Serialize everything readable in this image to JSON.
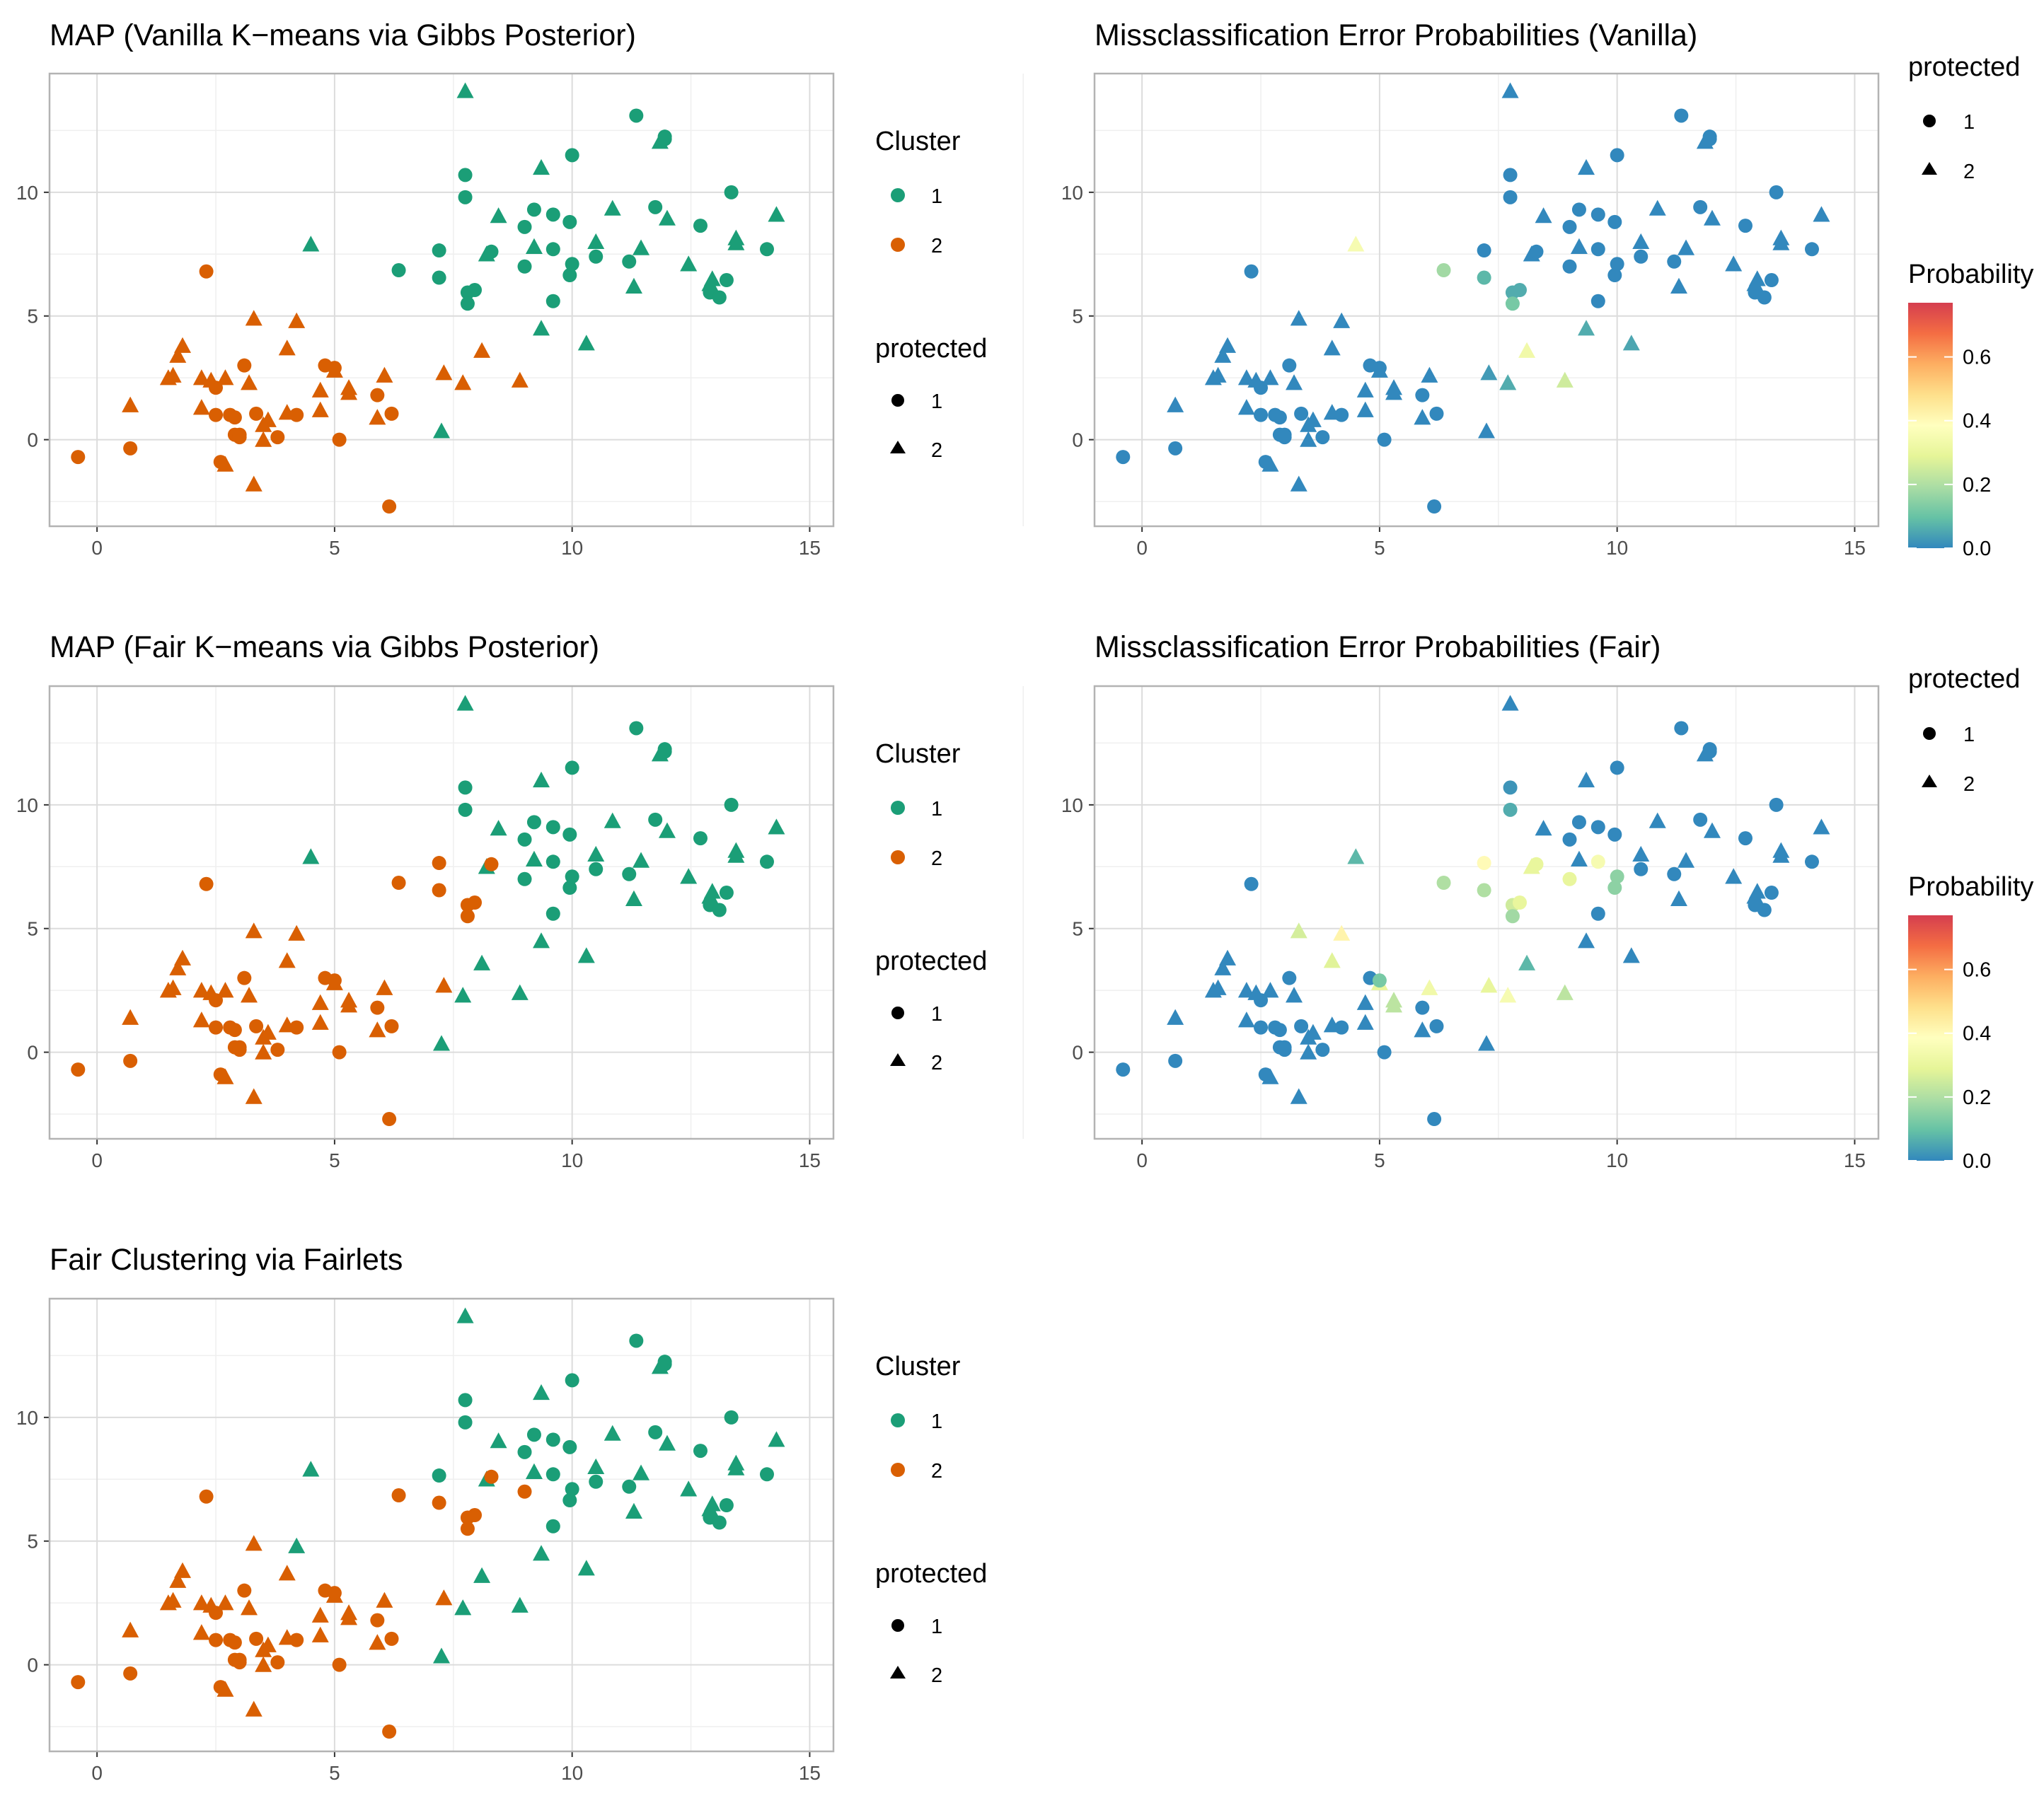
{
  "page": {
    "background": "#ffffff"
  },
  "colors": {
    "cluster": {
      "1": "#1b9e77",
      "2": "#d95f02"
    },
    "grid_major": "#dcdcdc",
    "grid_minor": "#efefef",
    "panel_border": "#b3b3b3",
    "axis_text": "#4d4d4d",
    "shape_key": "#000000",
    "probability_scale": [
      "#3288bd",
      "#66c2a5",
      "#abdda4",
      "#e6f598",
      "#ffffbf",
      "#fee08b",
      "#fdae61",
      "#f46d43",
      "#d53e4f"
    ]
  },
  "legends": {
    "cluster": {
      "title": "Cluster",
      "entries": [
        {
          "label": "1",
          "cluster": 1
        },
        {
          "label": "2",
          "cluster": 2
        }
      ]
    },
    "protected": {
      "title": "protected",
      "entries": [
        {
          "label": "1",
          "shape": "circle"
        },
        {
          "label": "2",
          "shape": "triangle"
        }
      ]
    },
    "probability": {
      "title": "Probability",
      "range": [
        0,
        0.77
      ],
      "ticks": [
        "0.0",
        "0.2",
        "0.4",
        "0.6"
      ]
    }
  },
  "axes": {
    "xlim": [
      -1,
      15.5
    ],
    "ylim": [
      -3.5,
      14.8
    ],
    "x_ticks": [
      "0",
      "5",
      "10",
      "15"
    ],
    "y_ticks": [
      "0",
      "5",
      "10"
    ]
  },
  "points": {
    "fields": [
      "x",
      "y",
      "protected"
    ],
    "values": [
      [
        -0.4,
        -0.7,
        1
      ],
      [
        0.7,
        -0.35,
        1
      ],
      [
        0.7,
        1.4,
        2
      ],
      [
        1.5,
        2.5,
        2
      ],
      [
        1.6,
        2.6,
        2
      ],
      [
        1.7,
        3.4,
        2
      ],
      [
        1.8,
        3.8,
        2
      ],
      [
        2.2,
        1.3,
        2
      ],
      [
        2.2,
        2.5,
        2
      ],
      [
        2.3,
        6.8,
        1
      ],
      [
        2.4,
        2.4,
        2
      ],
      [
        2.5,
        2.1,
        1
      ],
      [
        2.5,
        1.0,
        1
      ],
      [
        2.6,
        -0.9,
        1
      ],
      [
        2.7,
        -1.0,
        2
      ],
      [
        2.7,
        2.5,
        2
      ],
      [
        2.8,
        1.0,
        1
      ],
      [
        2.9,
        0.9,
        1
      ],
      [
        2.9,
        0.2,
        1
      ],
      [
        3.0,
        0.2,
        1
      ],
      [
        3.0,
        0.1,
        1
      ],
      [
        3.1,
        3.0,
        1
      ],
      [
        3.2,
        2.3,
        2
      ],
      [
        3.3,
        4.9,
        2
      ],
      [
        3.3,
        -1.8,
        2
      ],
      [
        3.35,
        1.05,
        1
      ],
      [
        3.5,
        0.0,
        2
      ],
      [
        3.5,
        0.6,
        2
      ],
      [
        3.6,
        0.8,
        2
      ],
      [
        3.8,
        0.1,
        1
      ],
      [
        4.0,
        3.7,
        2
      ],
      [
        4.0,
        1.1,
        2
      ],
      [
        4.2,
        4.8,
        2
      ],
      [
        4.2,
        1.0,
        1
      ],
      [
        4.5,
        7.9,
        2
      ],
      [
        4.7,
        2.0,
        2
      ],
      [
        4.7,
        1.2,
        2
      ],
      [
        4.8,
        3.0,
        1
      ],
      [
        5.0,
        2.8,
        2
      ],
      [
        5.0,
        2.9,
        1
      ],
      [
        5.1,
        0.0,
        1
      ],
      [
        5.3,
        2.1,
        2
      ],
      [
        5.3,
        1.9,
        2
      ],
      [
        5.9,
        1.8,
        1
      ],
      [
        5.9,
        0.9,
        2
      ],
      [
        6.05,
        2.6,
        2
      ],
      [
        6.15,
        -2.7,
        1
      ],
      [
        6.2,
        1.05,
        1
      ],
      [
        6.35,
        6.85,
        1
      ],
      [
        7.2,
        6.55,
        1
      ],
      [
        7.2,
        7.65,
        1
      ],
      [
        7.25,
        0.35,
        2
      ],
      [
        7.3,
        2.7,
        2
      ],
      [
        7.7,
        2.3,
        2
      ],
      [
        7.75,
        10.7,
        1
      ],
      [
        7.75,
        9.8,
        1
      ],
      [
        7.75,
        14.1,
        2
      ],
      [
        7.8,
        5.95,
        1
      ],
      [
        7.8,
        5.5,
        1
      ],
      [
        7.95,
        6.05,
        1
      ],
      [
        8.1,
        3.6,
        2
      ],
      [
        8.2,
        7.5,
        2
      ],
      [
        8.3,
        7.6,
        1
      ],
      [
        8.45,
        9.05,
        2
      ],
      [
        8.9,
        2.4,
        2
      ],
      [
        9.0,
        8.6,
        1
      ],
      [
        9.0,
        7.0,
        1
      ],
      [
        9.2,
        9.3,
        1
      ],
      [
        9.2,
        7.8,
        2
      ],
      [
        9.35,
        11.0,
        2
      ],
      [
        9.35,
        4.5,
        2
      ],
      [
        9.6,
        9.1,
        1
      ],
      [
        9.6,
        7.7,
        1
      ],
      [
        9.6,
        5.6,
        1
      ],
      [
        9.95,
        8.8,
        1
      ],
      [
        9.95,
        6.65,
        1
      ],
      [
        10.0,
        11.5,
        1
      ],
      [
        10.0,
        7.1,
        1
      ],
      [
        10.3,
        3.9,
        2
      ],
      [
        10.5,
        8.0,
        2
      ],
      [
        10.5,
        7.4,
        1
      ],
      [
        10.85,
        9.35,
        2
      ],
      [
        11.2,
        7.2,
        1
      ],
      [
        11.3,
        6.2,
        2
      ],
      [
        11.35,
        13.1,
        1
      ],
      [
        11.45,
        7.75,
        2
      ],
      [
        11.75,
        9.4,
        1
      ],
      [
        11.85,
        12.05,
        2
      ],
      [
        11.95,
        12.25,
        1
      ],
      [
        11.95,
        12.15,
        1
      ],
      [
        12.0,
        8.95,
        2
      ],
      [
        12.45,
        7.1,
        2
      ],
      [
        12.7,
        8.65,
        1
      ],
      [
        12.9,
        6.3,
        2
      ],
      [
        12.9,
        5.95,
        1
      ],
      [
        12.95,
        6.5,
        2
      ],
      [
        13.1,
        5.75,
        1
      ],
      [
        13.25,
        6.45,
        1
      ],
      [
        13.35,
        10.0,
        1
      ],
      [
        13.45,
        8.15,
        2
      ],
      [
        13.45,
        7.95,
        2
      ],
      [
        14.1,
        7.7,
        1
      ],
      [
        14.3,
        9.1,
        2
      ]
    ]
  },
  "chart_data": [
    {
      "type": "scatter",
      "title": "MAP (Vanilla K−means via Gibbs Posterior)",
      "xlabel": "",
      "ylabel": "",
      "xlim": [
        -1,
        15.5
      ],
      "ylim": [
        -3.5,
        14.8
      ],
      "color_by": "cluster",
      "cluster_2_indices": [
        0,
        1,
        2,
        3,
        4,
        5,
        6,
        7,
        8,
        9,
        10,
        11,
        12,
        13,
        14,
        15,
        16,
        17,
        18,
        19,
        20,
        21,
        22,
        23,
        24,
        25,
        26,
        27,
        28,
        29,
        30,
        31,
        32,
        33,
        35,
        36,
        37,
        38,
        39,
        40,
        41,
        42,
        43,
        44,
        45,
        46,
        47,
        52,
        53,
        60,
        64
      ]
    },
    {
      "type": "scatter",
      "title": "Missclassification Error Probabilities (Vanilla)",
      "xlabel": "",
      "ylabel": "",
      "xlim": [
        -1,
        15.5
      ],
      "ylim": [
        -3.5,
        14.8
      ],
      "color_by": "probability",
      "probability": {
        "34": 0.35,
        "48": 0.18,
        "49": 0.08,
        "53": 0.06,
        "57": 0.06,
        "58": 0.12,
        "59": 0.06,
        "60": 0.33,
        "64": 0.25,
        "70": 0.06,
        "78": 0.05,
        "52": 0.03
      }
    },
    {
      "type": "scatter",
      "title": "MAP (Fair K−means via Gibbs Posterior)",
      "xlabel": "",
      "ylabel": "",
      "xlim": [
        -1,
        15.5
      ],
      "ylim": [
        -3.5,
        14.8
      ],
      "color_by": "cluster",
      "cluster_2_indices": [
        0,
        1,
        2,
        3,
        4,
        5,
        6,
        7,
        8,
        9,
        10,
        11,
        12,
        13,
        14,
        15,
        16,
        17,
        18,
        19,
        20,
        21,
        22,
        23,
        24,
        25,
        26,
        27,
        28,
        29,
        30,
        31,
        32,
        33,
        35,
        36,
        37,
        38,
        39,
        40,
        41,
        42,
        43,
        44,
        45,
        46,
        47,
        48,
        49,
        50,
        52,
        57,
        58,
        59,
        62
      ]
    },
    {
      "type": "scatter",
      "title": "Missclassification Error Probabilities (Fair)",
      "xlabel": "",
      "ylabel": "",
      "xlim": [
        -1,
        15.5
      ],
      "ylim": [
        -3.5,
        14.8
      ],
      "color_by": "probability",
      "probability": {
        "23": 0.26,
        "32": 0.42,
        "30": 0.28,
        "34": 0.08,
        "38": 0.3,
        "39": 0.12,
        "41": 0.22,
        "42": 0.22,
        "45": 0.33,
        "48": 0.2,
        "49": 0.2,
        "50": 0.4,
        "52": 0.3,
        "53": 0.35,
        "55": 0.06,
        "57": 0.25,
        "58": 0.18,
        "59": 0.3,
        "60": 0.08,
        "61": 0.3,
        "62": 0.3,
        "64": 0.22,
        "66": 0.3,
        "72": 0.35,
        "75": 0.15,
        "77": 0.15,
        "54": 0.02
      }
    },
    {
      "type": "scatter",
      "title": "Fair Clustering via Fairlets",
      "xlabel": "",
      "ylabel": "",
      "xlim": [
        -1,
        15.5
      ],
      "ylim": [
        -3.5,
        14.8
      ],
      "color_by": "cluster",
      "cluster_2_indices": [
        0,
        1,
        2,
        3,
        4,
        5,
        6,
        7,
        8,
        9,
        10,
        11,
        12,
        13,
        14,
        15,
        16,
        17,
        18,
        19,
        20,
        21,
        22,
        23,
        24,
        25,
        26,
        27,
        28,
        29,
        30,
        31,
        33,
        35,
        36,
        37,
        38,
        39,
        40,
        41,
        42,
        43,
        44,
        45,
        46,
        47,
        48,
        49,
        52,
        57,
        58,
        59,
        62,
        66
      ]
    }
  ]
}
